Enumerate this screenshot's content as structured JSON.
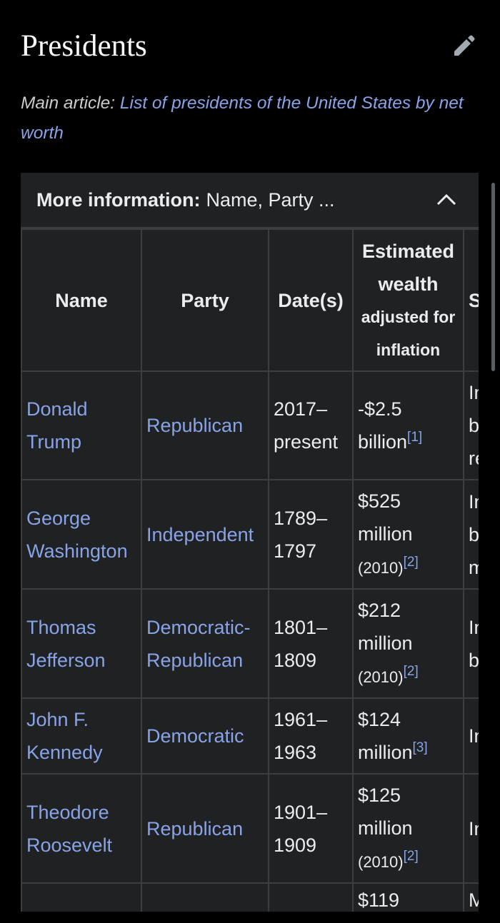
{
  "section": {
    "title": "Presidents"
  },
  "hatnote": {
    "label": "Main article:",
    "link": "List of presidents of the United States by net worth"
  },
  "table": {
    "toggle_label": "More information:",
    "toggle_text": "Name, Party ...",
    "headers": {
      "name": "Name",
      "party": "Party",
      "dates": "Date(s)",
      "wealth": "Estimated wealth",
      "wealth_sub": "adjusted for inflation",
      "extra": "S"
    },
    "rows": [
      {
        "name": "Donald Trump",
        "party": "Republican",
        "dates": "2017–present",
        "wealth": "-$2.5 billion",
        "ref": "[1]",
        "extra": [
          "In",
          "b",
          "re"
        ]
      },
      {
        "name": "George Washington",
        "party": "Independent",
        "dates": "1789–1797",
        "wealth": "$525 million",
        "year": "(2010)",
        "ref": "[2]",
        "extra": [
          "In",
          "b",
          "m"
        ]
      },
      {
        "name": "Thomas Jefferson",
        "party": "Democratic-Republican",
        "dates": "1801–1809",
        "wealth": "$212 million",
        "year": "(2010)",
        "ref": "[2]",
        "extra": [
          "In",
          "b"
        ]
      },
      {
        "name": "John F. Kennedy",
        "party": "Democratic",
        "dates": "1961–1963",
        "wealth": "$124 million",
        "ref": "[3]",
        "extra": [
          "In"
        ]
      },
      {
        "name": "Theodore Roosevelt",
        "party": "Republican",
        "dates": "1901–1909",
        "wealth": "$125 million",
        "year": "(2010)",
        "ref": "[2]",
        "extra": [
          "In"
        ]
      },
      {
        "wealth": "$119",
        "extra": [
          "M"
        ]
      }
    ]
  }
}
